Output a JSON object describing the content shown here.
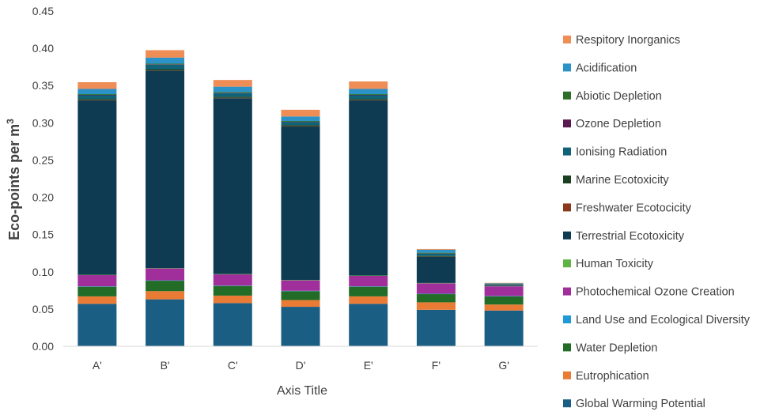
{
  "chart_data": {
    "type": "bar",
    "stacked": true,
    "categories": [
      "A'",
      "B'",
      "C'",
      "D'",
      "E'",
      "F'",
      "G'"
    ],
    "xlabel": "Axis Title",
    "ylabel": "Eco-points per m³",
    "ylim": [
      0,
      0.45
    ],
    "yticks": [
      "0.00",
      "0.05",
      "0.10",
      "0.15",
      "0.20",
      "0.25",
      "0.30",
      "0.35",
      "0.40",
      "0.45"
    ],
    "grid": false,
    "legend_position": "right",
    "series": [
      {
        "name": "Global Warming Potential",
        "color": "#1b5e84",
        "values": [
          0.057,
          0.063,
          0.058,
          0.053,
          0.057,
          0.049,
          0.048
        ]
      },
      {
        "name": "Eutrophication",
        "color": "#ea7b34",
        "values": [
          0.01,
          0.011,
          0.01,
          0.009,
          0.01,
          0.01,
          0.008
        ]
      },
      {
        "name": "Water Depletion",
        "color": "#226c27",
        "values": [
          0.013,
          0.014,
          0.013,
          0.012,
          0.013,
          0.011,
          0.011
        ]
      },
      {
        "name": "Land Use and Ecological Diversity",
        "color": "#1e9bd7",
        "values": [
          0.0005,
          0.0005,
          0.0005,
          0.0005,
          0.0005,
          0.0005,
          0.0005
        ]
      },
      {
        "name": "Photochemical Ozone Creation",
        "color": "#a12f9b",
        "values": [
          0.015,
          0.016,
          0.015,
          0.014,
          0.014,
          0.014,
          0.013
        ]
      },
      {
        "name": "Human Toxicity",
        "color": "#5fb342",
        "values": [
          0.0005,
          0.0005,
          0.0005,
          0.0005,
          0.0005,
          0.0005,
          0.0003
        ]
      },
      {
        "name": "Terrestrial Ecotoxicity",
        "color": "#0e3a52",
        "values": [
          0.234,
          0.265,
          0.236,
          0.206,
          0.235,
          0.035,
          0.001
        ]
      },
      {
        "name": "Freshwater Ecotocicity",
        "color": "#8a3a1a",
        "values": [
          0.0005,
          0.0005,
          0.0005,
          0.0005,
          0.0005,
          0.0003,
          0.0002
        ]
      },
      {
        "name": "Marine Ecotoxicity",
        "color": "#19401f",
        "values": [
          0.0015,
          0.0015,
          0.0015,
          0.0015,
          0.0015,
          0.001,
          0.0005
        ]
      },
      {
        "name": "Ionising Radiation",
        "color": "#0f6278",
        "values": [
          0.005,
          0.006,
          0.005,
          0.004,
          0.005,
          0.003,
          0.001
        ]
      },
      {
        "name": "Ozone Depletion",
        "color": "#5a1a50",
        "values": [
          0.0005,
          0.0005,
          0.0005,
          0.0005,
          0.0005,
          0.0003,
          0.0002
        ]
      },
      {
        "name": "Abiotic Depletion",
        "color": "#2a6f2a",
        "values": [
          0.001,
          0.001,
          0.001,
          0.001,
          0.001,
          0.001,
          0.0005
        ]
      },
      {
        "name": "Acidification",
        "color": "#2b93c7",
        "values": [
          0.007,
          0.008,
          0.007,
          0.006,
          0.007,
          0.004,
          0.0005
        ]
      },
      {
        "name": "Respitory Inorganics",
        "color": "#ee8d55",
        "values": [
          0.009,
          0.01,
          0.009,
          0.009,
          0.01,
          0.001,
          0.0005
        ]
      }
    ]
  }
}
